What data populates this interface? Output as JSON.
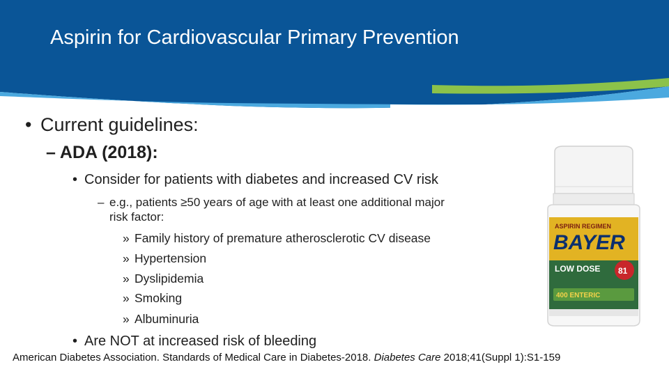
{
  "slide": {
    "title": "Aspirin for Cardiovascular Primary Prevention",
    "bullet1": "Current guidelines:",
    "sub1": "– ADA (2018):",
    "item1": "Consider for patients with diabetes and increased CV risk",
    "example_dash": "–",
    "example_line1": "e.g., patients ≥50 years of age with at least one additional major",
    "example_line2": "risk factor:",
    "risk_marker": "»",
    "risk_factors": [
      "Family history of premature atherosclerotic CV disease",
      "Hypertension",
      "Dyslipidemia",
      "Smoking",
      "Albuminuria"
    ],
    "item2": "Are NOT at increased risk of bleeding",
    "citation": {
      "authors": "American Diabetes Association. Standards of Medical Care in Diabetes-2018. ",
      "journal": "Diabetes Care",
      "details": " 2018;41(Suppl 1):S1-159"
    }
  },
  "image": {
    "brand": "BAYER",
    "top_label": "ASPIRIN REGIMEN",
    "dose": "LOW DOSE",
    "strength": "81",
    "count": "400 ENTERIC"
  },
  "colors": {
    "header_blue": "#0a5597",
    "light_blue": "#4ba9df",
    "lime_green": "#8cc24a",
    "bottle_green": "#2f6b3d",
    "label_yellow": "#e2b323"
  }
}
